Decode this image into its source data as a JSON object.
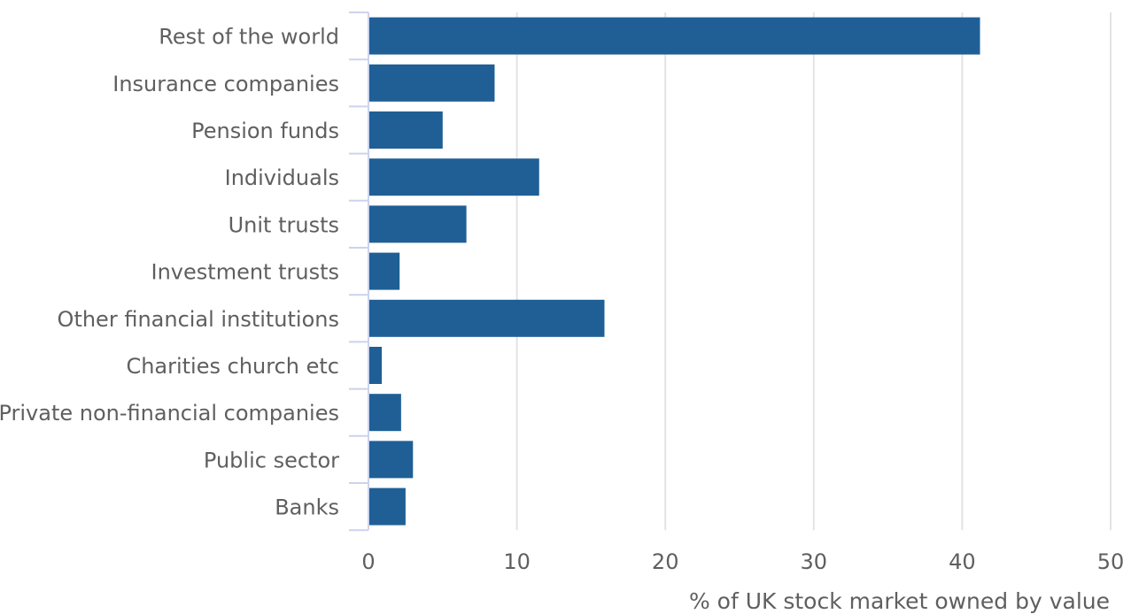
{
  "chart_data": {
    "type": "bar",
    "orientation": "horizontal",
    "categories": [
      "Rest of the world",
      "Insurance companies",
      "Pension funds",
      "Individuals",
      "Unit trusts",
      "Investment trusts",
      "Other financial institutions",
      "Charities church etc",
      "Private non-financial companies",
      "Public sector",
      "Banks"
    ],
    "values": [
      41.2,
      8.5,
      5.0,
      11.5,
      6.6,
      2.1,
      15.9,
      0.9,
      2.2,
      3.0,
      2.5
    ],
    "title": "",
    "xlabel": "% of UK stock market owned by value",
    "ylabel": "",
    "xlim": [
      0,
      50
    ],
    "xticks": [
      0,
      10,
      20,
      30,
      40,
      50
    ],
    "grid": "vertical",
    "legend": "none",
    "bar_color": "#1f5f96",
    "grid_color": "#e3e3e6",
    "axis_color": "#ccd3ec",
    "text_color": "#5f5f5f"
  }
}
